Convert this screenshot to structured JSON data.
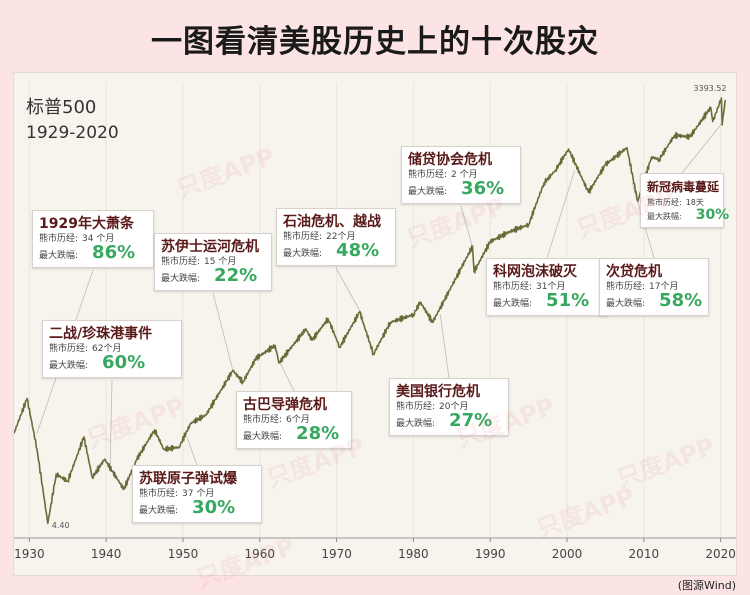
{
  "title": "一图看清美股历史上的十次股灾",
  "source": "(图源Wind)",
  "watermark": "只度APP",
  "labels": {
    "duration": "熊市历经:",
    "max_drop": "最大跌幅:"
  },
  "chart_data": {
    "type": "line",
    "index_name": "标普500",
    "period": "1929-2020",
    "xlim": [
      1928,
      2022
    ],
    "log_scale": true,
    "line_color": "#6b6b3a",
    "x_ticks": [
      1930,
      1940,
      1950,
      1960,
      1970,
      1980,
      1990,
      2000,
      2010,
      2020
    ],
    "annotations": [
      {
        "text": "4.40",
        "x": 1932.4,
        "y": 4.4
      },
      {
        "text": "3393.52",
        "x": 2020.1,
        "y": 3393.52
      }
    ],
    "series": [
      {
        "values": [
          [
            1928.0,
            18
          ],
          [
            1929.7,
            31
          ],
          [
            1931.0,
            14
          ],
          [
            1932.4,
            4.4
          ],
          [
            1933.5,
            9.5
          ],
          [
            1935.0,
            8.5
          ],
          [
            1937.1,
            17
          ],
          [
            1938.2,
            9
          ],
          [
            1939.8,
            12
          ],
          [
            1942.3,
            7.5
          ],
          [
            1944.0,
            12
          ],
          [
            1946.3,
            19
          ],
          [
            1947.5,
            14
          ],
          [
            1949.5,
            14.5
          ],
          [
            1951.0,
            21
          ],
          [
            1953.0,
            24
          ],
          [
            1956.5,
            48
          ],
          [
            1957.8,
            40
          ],
          [
            1959.5,
            58
          ],
          [
            1962.0,
            71
          ],
          [
            1962.5,
            54
          ],
          [
            1966.0,
            92
          ],
          [
            1966.8,
            77
          ],
          [
            1968.9,
            108
          ],
          [
            1970.4,
            69
          ],
          [
            1973.0,
            120
          ],
          [
            1974.8,
            62
          ],
          [
            1977.0,
            102
          ],
          [
            1980.0,
            115
          ],
          [
            1980.9,
            140
          ],
          [
            1982.5,
            102
          ],
          [
            1985.0,
            180
          ],
          [
            1987.7,
            335
          ],
          [
            1987.9,
            225
          ],
          [
            1990.0,
            360
          ],
          [
            1992.5,
            420
          ],
          [
            1995.0,
            470
          ],
          [
            1997.0,
            900
          ],
          [
            1998.5,
            1100
          ],
          [
            2000.2,
            1530
          ],
          [
            2002.8,
            777
          ],
          [
            2005.0,
            1200
          ],
          [
            2007.8,
            1565
          ],
          [
            2009.2,
            676
          ],
          [
            2011.0,
            1350
          ],
          [
            2012.0,
            1300
          ],
          [
            2014.0,
            1900
          ],
          [
            2016.0,
            1850
          ],
          [
            2018.7,
            2930
          ],
          [
            2018.98,
            2350
          ],
          [
            2020.1,
            3393.52
          ],
          [
            2020.2,
            2237
          ],
          [
            2020.6,
            3300
          ]
        ]
      }
    ],
    "events": [
      {
        "name": "1929年大萧条",
        "duration": "34 个月",
        "drop": "86%"
      },
      {
        "name": "二战/珍珠港事件",
        "duration": "62个月",
        "drop": "60%"
      },
      {
        "name": "苏联原子弹试爆",
        "duration": "37 个月",
        "drop": "30%"
      },
      {
        "name": "苏伊士运河危机",
        "duration": "15 个月",
        "drop": "22%"
      },
      {
        "name": "古巴导弹危机",
        "duration": "6个月",
        "drop": "28%"
      },
      {
        "name": "石油危机、越战",
        "duration": "22个月",
        "drop": "48%"
      },
      {
        "name": "美国银行危机",
        "duration": "20个月",
        "drop": "27%"
      },
      {
        "name": "储贷协会危机",
        "duration": "2 个月",
        "drop": "36%"
      },
      {
        "name": "科网泡沫破灭",
        "duration": "31个月",
        "drop": "51%"
      },
      {
        "name": "次贷危机",
        "duration": "17个月",
        "drop": "58%"
      },
      {
        "name": "新冠病毒蔓延",
        "duration": "18天",
        "drop": "30%"
      }
    ]
  }
}
